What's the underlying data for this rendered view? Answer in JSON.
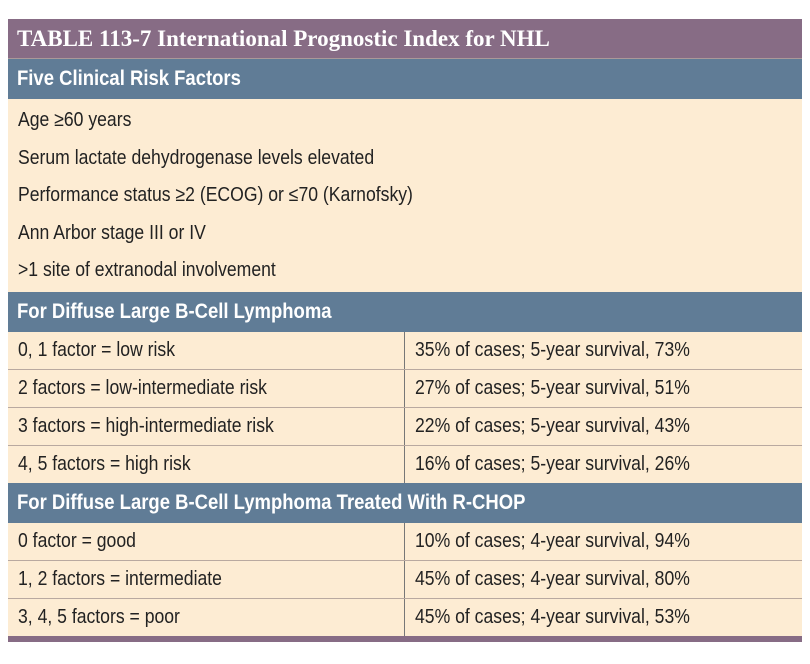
{
  "title": "TABLE 113-7  International Prognostic Index for NHL",
  "sections": [
    {
      "header": "Five Clinical Risk Factors",
      "items": [
        "Age ≥60 years",
        "Serum lactate dehydrogenase levels elevated",
        "Performance status ≥2 (ECOG) or ≤70 (Karnofsky)",
        "Ann Arbor stage III or IV",
        ">1 site of extranodal involvement"
      ]
    },
    {
      "header": "For Diffuse Large B-Cell Lymphoma",
      "rows": [
        [
          "0, 1 factor = low risk",
          "35% of cases; 5-year survival, 73%"
        ],
        [
          "2 factors = low-intermediate risk",
          "27% of cases; 5-year survival, 51%"
        ],
        [
          "3 factors = high-intermediate risk",
          "22% of cases; 5-year survival, 43%"
        ],
        [
          "4, 5 factors = high risk",
          "16% of cases; 5-year survival, 26%"
        ]
      ]
    },
    {
      "header": "For Diffuse Large B-Cell Lymphoma Treated With R-CHOP",
      "rows": [
        [
          "0 factor = good",
          "10% of cases; 4-year survival, 94%"
        ],
        [
          "1, 2 factors = intermediate",
          "45% of cases; 4-year survival, 80%"
        ],
        [
          "3, 4, 5 factors = poor",
          "45% of cases; 4-year survival, 53%"
        ]
      ]
    }
  ],
  "colors": {
    "title_bg": "#876c85",
    "section_bg": "#607c96",
    "row_bg": "#fdecd3"
  }
}
